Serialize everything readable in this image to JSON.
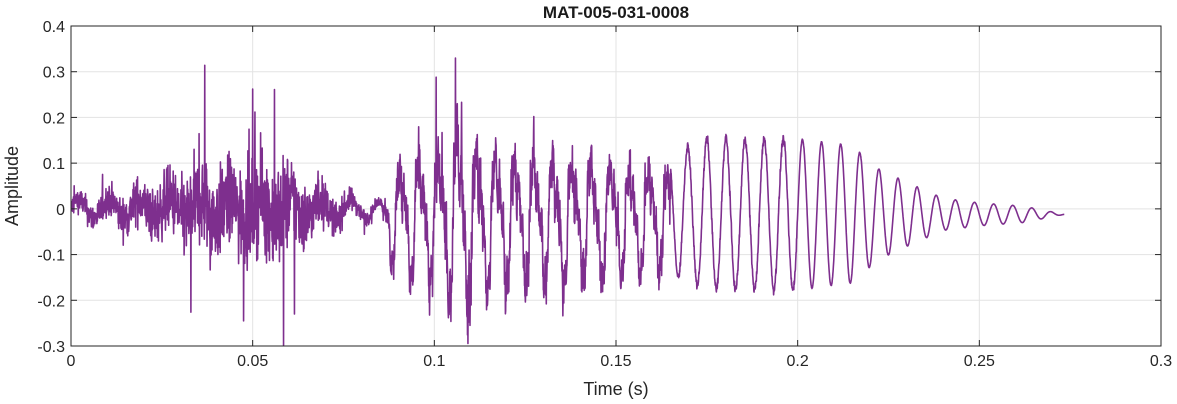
{
  "chart_data": {
    "type": "line",
    "title": "MAT-005-031-0008",
    "xlabel": "Time (s)",
    "ylabel": "Amplitude",
    "xlim": [
      0,
      0.3
    ],
    "ylim": [
      -0.3,
      0.4
    ],
    "x_ticks": [
      0,
      0.05,
      0.1,
      0.15,
      0.2,
      0.25,
      0.3
    ],
    "x_tick_labels": [
      "0",
      "0.05",
      "0.1",
      "0.15",
      "0.2",
      "0.25",
      "0.3"
    ],
    "y_ticks": [
      -0.3,
      -0.2,
      -0.1,
      0,
      0.1,
      0.2,
      0.3,
      0.4
    ],
    "y_tick_labels": [
      "-0.3",
      "-0.2",
      "-0.1",
      "0",
      "0.1",
      "0.2",
      "0.3",
      "0.4"
    ],
    "grid": true,
    "line_color": "#7E2F8E",
    "series": [
      {
        "x_start": 0,
        "x_end": 0.2734,
        "segments": [
          {
            "t_start": 0.0,
            "t_end": 0.085,
            "kind": "noise",
            "envelope": [
              [
                0.0,
                0.05
              ],
              [
                0.012,
                0.08
              ],
              [
                0.025,
                0.14
              ],
              [
                0.037,
                0.22
              ],
              [
                0.045,
                0.2
              ],
              [
                0.052,
                0.23
              ],
              [
                0.058,
                0.24
              ],
              [
                0.065,
                0.15
              ],
              [
                0.072,
                0.08
              ],
              [
                0.08,
                0.04
              ],
              [
                0.085,
                0.02
              ]
            ]
          },
          {
            "t_start": 0.085,
            "t_end": 0.165,
            "kind": "voiced",
            "pitch_hz": 190,
            "envelope": [
              [
                0.085,
                0.04
              ],
              [
                0.09,
                0.14
              ],
              [
                0.1,
                0.17
              ],
              [
                0.106,
                0.23
              ],
              [
                0.115,
                0.17
              ],
              [
                0.13,
                0.16
              ],
              [
                0.15,
                0.14
              ],
              [
                0.165,
                0.13
              ]
            ]
          },
          {
            "t_start": 0.165,
            "t_end": 0.2734,
            "kind": "tone",
            "pitch_hz": 190,
            "envelope": [
              [
                0.165,
                0.13
              ],
              [
                0.175,
                0.165
              ],
              [
                0.2,
                0.165
              ],
              [
                0.215,
                0.15
              ],
              [
                0.222,
                0.1
              ],
              [
                0.23,
                0.07
              ],
              [
                0.24,
                0.035
              ],
              [
                0.25,
                0.025
              ],
              [
                0.262,
                0.018
              ],
              [
                0.2734,
                0.0
              ]
            ]
          }
        ],
        "peaks": [
          {
            "x": 0.0368,
            "y": 0.314
          },
          {
            "x": 0.056,
            "y": 0.261
          },
          {
            "x": 0.0585,
            "y": -0.298
          },
          {
            "x": 0.05,
            "y": 0.262
          },
          {
            "x": 0.1058,
            "y": 0.33
          },
          {
            "x": 0.1005,
            "y": 0.288
          },
          {
            "x": 0.0475,
            "y": -0.245
          },
          {
            "x": 0.033,
            "y": -0.226
          },
          {
            "x": 0.1075,
            "y": 0.233
          },
          {
            "x": 0.0615,
            "y": -0.23
          }
        ]
      }
    ]
  }
}
